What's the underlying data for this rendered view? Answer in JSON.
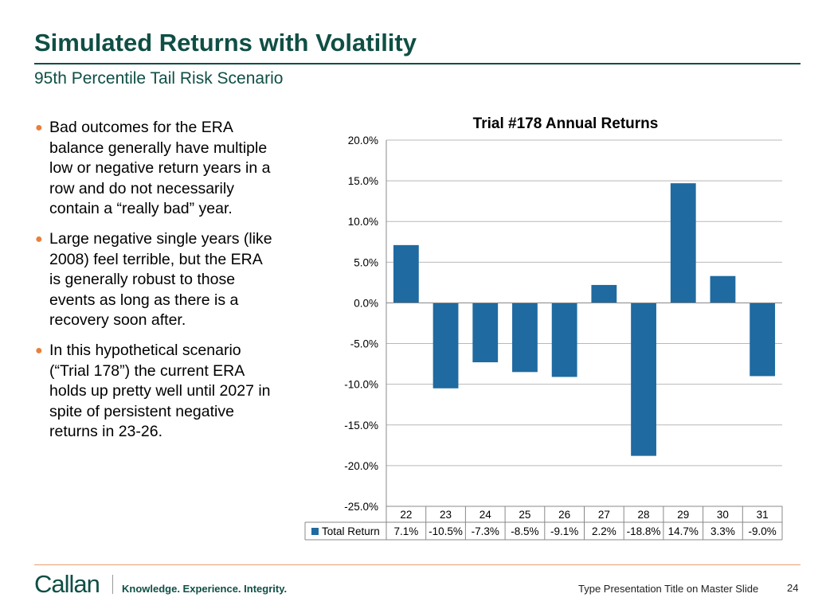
{
  "slide": {
    "title": "Simulated Returns with Volatility",
    "subtitle": "95th Percentile Tail Risk Scenario",
    "bullets": [
      "Bad outcomes for the ERA balance generally have multiple low or negative return years in a row and do not necessarily contain a “really bad” year.",
      "Large negative single years (like 2008) feel terrible, but the ERA is generally robust to those events as long as there is a recovery soon after.",
      "In this hypothetical scenario (“Trial 178”) the current ERA holds up pretty well until 2027 in spite of persistent negative returns in 23-26."
    ],
    "bullet_glyph": "●",
    "bullet_color": "#e8803a",
    "brand_color": "#0f4f45"
  },
  "chart_data": {
    "type": "bar",
    "title": "Trial #178 Annual Returns",
    "categories": [
      "22",
      "23",
      "24",
      "25",
      "26",
      "27",
      "28",
      "29",
      "30",
      "31"
    ],
    "series": [
      {
        "name": "Total Return",
        "values": [
          7.1,
          -10.5,
          -7.3,
          -8.5,
          -9.1,
          2.2,
          -18.8,
          14.7,
          3.3,
          -9.0
        ],
        "labels": [
          "7.1%",
          "-10.5%",
          "-7.3%",
          "-8.5%",
          "-9.1%",
          "2.2%",
          "-18.8%",
          "14.7%",
          "3.3%",
          "-9.0%"
        ],
        "color": "#1f6aa0"
      }
    ],
    "ylim": [
      -25,
      20
    ],
    "yticks": [
      "20.0%",
      "15.0%",
      "10.0%",
      "5.0%",
      "0.0%",
      "-5.0%",
      "-10.0%",
      "-15.0%",
      "-20.0%",
      "-25.0%"
    ],
    "ytick_values": [
      20,
      15,
      10,
      5,
      0,
      -5,
      -10,
      -15,
      -20,
      -25
    ],
    "grid": true,
    "legend": "data-table-below"
  },
  "footer": {
    "logo": "Callan",
    "tagline": "Knowledge. Experience. Integrity.",
    "presentation_title": "Type Presentation Title on Master Slide",
    "page_number": "24"
  }
}
